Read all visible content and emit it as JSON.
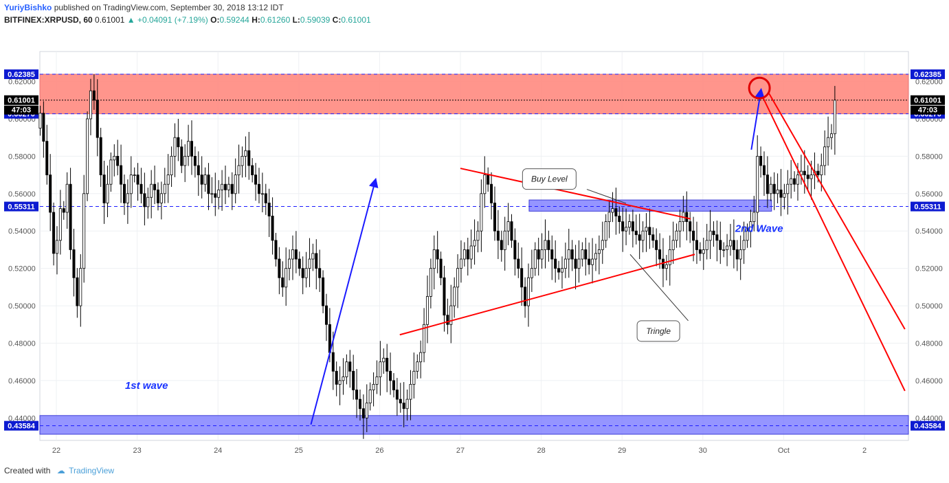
{
  "header": {
    "author": "YuriyBishko",
    "published": "published on TradingView.com, September 30, 2018 13:12 IDT",
    "symbol": "BITFINEX:XRPUSD, 60",
    "last": "0.61001",
    "change": "+0.04091 (+7.19%)",
    "o_label": "O:",
    "o_value": "0.59244",
    "h_label": "H:",
    "h_value": "0.61260",
    "l_label": "L:",
    "l_value": "0.59039",
    "c_label": "C:",
    "c_value": "0.61001"
  },
  "footer": {
    "created_with": "Created with",
    "brand": "TradingView"
  },
  "colors": {
    "bull": "#26a69a",
    "bear": "#ef5350",
    "candle": "#000000",
    "resistance_zone": "#ff8a80",
    "support_zone": "#7b7bff",
    "trend_red": "#ff0000",
    "arrow_blue": "#1a1aff",
    "label_blue": "#1a33ff",
    "grid": "#eef0f3"
  },
  "chart_data": {
    "type": "candlestick",
    "symbol": "BITFINEX:XRPUSD",
    "timeframe": "60",
    "ylim": [
      0.428,
      0.636
    ],
    "y_ticks": [
      "0.44000",
      "0.46000",
      "0.48000",
      "0.50000",
      "0.52000",
      "0.54000",
      "0.56000",
      "0.58000",
      "0.60000",
      "0.62000"
    ],
    "x_ticks": [
      {
        "label": "22",
        "day": 0
      },
      {
        "label": "23",
        "day": 1
      },
      {
        "label": "24",
        "day": 2
      },
      {
        "label": "25",
        "day": 3
      },
      {
        "label": "26",
        "day": 4
      },
      {
        "label": "27",
        "day": 5
      },
      {
        "label": "28",
        "day": 6
      },
      {
        "label": "29",
        "day": 7
      },
      {
        "label": "30",
        "day": 8
      },
      {
        "label": "Oct",
        "day": 9
      },
      {
        "label": "2",
        "day": 10
      }
    ],
    "price_labels": [
      {
        "value": 0.62385,
        "text": "0.62385",
        "color": "#0d1bd1",
        "side": "both"
      },
      {
        "value": 0.61001,
        "text": "0.61001",
        "color": "#000000",
        "side": "both"
      },
      {
        "value": 0.6027,
        "text": "0.60270",
        "color": "#0d1bd1",
        "side": "both"
      },
      {
        "value": 0.55311,
        "text": "0.55311",
        "color": "#0d1bd1",
        "side": "both"
      },
      {
        "value": 0.43584,
        "text": "0.43584",
        "color": "#0d1bd1",
        "side": "both"
      }
    ],
    "countdown": "47:03",
    "zones": [
      {
        "name": "resistance-zone",
        "from_day": -0.5,
        "to_day": 10.55,
        "low": 0.6027,
        "high": 0.62385
      },
      {
        "name": "support-zone",
        "from_day": -0.5,
        "to_day": 10.55,
        "low": 0.4313,
        "high": 0.4413
      },
      {
        "name": "buy-level-zone",
        "from_day": 5.85,
        "to_day": 8.85,
        "low": 0.5506,
        "high": 0.5566
      }
    ],
    "dashed_levels": [
      0.62385,
      0.61001,
      0.6027,
      0.55311,
      0.43584
    ],
    "trend_lines": [
      {
        "name": "triangle-upper",
        "from": [
          5.0,
          0.5735
        ],
        "to": [
          7.85,
          0.5465
        ]
      },
      {
        "name": "triangle-lower",
        "from": [
          4.25,
          0.4845
        ],
        "to": [
          7.9,
          0.5275
        ]
      },
      {
        "name": "projection-line-1",
        "from": [
          8.82,
          0.6135
        ],
        "to": [
          10.5,
          0.4875
        ]
      },
      {
        "name": "projection-line-2",
        "from": [
          8.72,
          0.6135
        ],
        "to": [
          10.5,
          0.4545
        ]
      }
    ],
    "arrows": [
      {
        "name": "wave-1-arrow",
        "from": [
          3.15,
          0.4365
        ],
        "to": [
          3.95,
          0.5675
        ]
      },
      {
        "name": "wave-2-arrow",
        "from": [
          8.6,
          0.5835
        ],
        "to": [
          8.72,
          0.6155
        ]
      }
    ],
    "target_circle": {
      "day": 8.7,
      "price": 0.6165
    },
    "annotations": [
      {
        "text": "1st wave",
        "day": 0.85,
        "price": 0.4555
      },
      {
        "text": "2nd Wave",
        "day": 8.4,
        "price": 0.5395
      }
    ],
    "callouts": [
      {
        "text": "Buy Level",
        "box_day": 6.1,
        "box_price": 0.5678,
        "point_day": 7.05,
        "point_price": 0.5548
      },
      {
        "text": "Tringle",
        "box_day": 7.45,
        "box_price": 0.4865,
        "point_day": 7.1,
        "point_price": 0.5275
      }
    ],
    "candles_per_day": 24,
    "closes": [
      0.603,
      0.588,
      0.57,
      0.55,
      0.528,
      0.535,
      0.552,
      0.55,
      0.565,
      0.53,
      0.515,
      0.5,
      0.52,
      0.56,
      0.6,
      0.615,
      0.61,
      0.59,
      0.57,
      0.555,
      0.565,
      0.578,
      0.58,
      0.575,
      0.565,
      0.555,
      0.56,
      0.57,
      0.57,
      0.565,
      0.56,
      0.553,
      0.558,
      0.565,
      0.562,
      0.555,
      0.56,
      0.565,
      0.57,
      0.58,
      0.59,
      0.585,
      0.575,
      0.58,
      0.588,
      0.58,
      0.575,
      0.57,
      0.565,
      0.57,
      0.56,
      0.56,
      0.558,
      0.562,
      0.565,
      0.562,
      0.565,
      0.56,
      0.57,
      0.575,
      0.58,
      0.583,
      0.575,
      0.57,
      0.565,
      0.56,
      0.56,
      0.555,
      0.548,
      0.535,
      0.525,
      0.515,
      0.51,
      0.52,
      0.525,
      0.53,
      0.525,
      0.52,
      0.515,
      0.52,
      0.525,
      0.528,
      0.52,
      0.515,
      0.5,
      0.49,
      0.475,
      0.465,
      0.458,
      0.46,
      0.462,
      0.47,
      0.465,
      0.455,
      0.45,
      0.445,
      0.44,
      0.448,
      0.455,
      0.458,
      0.462,
      0.47,
      0.472,
      0.465,
      0.46,
      0.455,
      0.45,
      0.448,
      0.445,
      0.45,
      0.458,
      0.465,
      0.47,
      0.475,
      0.49,
      0.505,
      0.52,
      0.53,
      0.525,
      0.515,
      0.495,
      0.49,
      0.5,
      0.51,
      0.52,
      0.525,
      0.53,
      0.525,
      0.532,
      0.535,
      0.54,
      0.56,
      0.57,
      0.565,
      0.555,
      0.54,
      0.535,
      0.53,
      0.54,
      0.545,
      0.535,
      0.525,
      0.52,
      0.51,
      0.5,
      0.515,
      0.52,
      0.53,
      0.525,
      0.53,
      0.535,
      0.53,
      0.525,
      0.52,
      0.518,
      0.52,
      0.525,
      0.53,
      0.525,
      0.52,
      0.525,
      0.53,
      0.525,
      0.522,
      0.525,
      0.528,
      0.53,
      0.535,
      0.545,
      0.55,
      0.552,
      0.548,
      0.545,
      0.54,
      0.542,
      0.545,
      0.54,
      0.538,
      0.535,
      0.54,
      0.542,
      0.538,
      0.535,
      0.53,
      0.525,
      0.52,
      0.522,
      0.53,
      0.535,
      0.54,
      0.545,
      0.55,
      0.545,
      0.54,
      0.535,
      0.53,
      0.528,
      0.53,
      0.535,
      0.54,
      0.538,
      0.535,
      0.53,
      0.53,
      0.532,
      0.535,
      0.53,
      0.525,
      0.53,
      0.535,
      0.54,
      0.545,
      0.55,
      0.58,
      0.575,
      0.57,
      0.56,
      0.565,
      0.56,
      0.562,
      0.558,
      0.56,
      0.565,
      0.568,
      0.565,
      0.57,
      0.572,
      0.57,
      0.568,
      0.57,
      0.572,
      0.57,
      0.575,
      0.585,
      0.59,
      0.592,
      0.61
    ]
  }
}
